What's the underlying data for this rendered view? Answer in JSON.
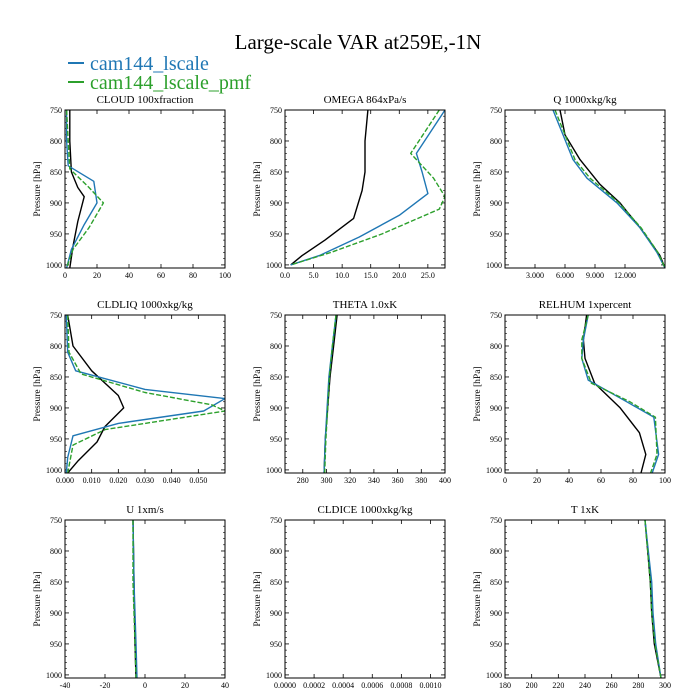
{
  "figure": {
    "title": "Large-scale VAR at259E,-1N",
    "legend": [
      {
        "label": "cam144_lscale",
        "color": "#1f77b4"
      },
      {
        "label": "cam144_lscale_pmf",
        "color": "#2ca02c"
      }
    ],
    "reference_color": "#000000"
  },
  "chart_data": [
    {
      "type": "line",
      "title": "CLOUD 100xfraction",
      "ylabel": "Pressure [hPa]",
      "xlim": [
        0,
        100
      ],
      "xticks": [
        "0",
        "20",
        "40",
        "60",
        "80",
        "100"
      ],
      "xtick_values": [
        0,
        20,
        40,
        60,
        80,
        100
      ],
      "ylim": [
        750,
        1005
      ],
      "yticks": [
        750,
        800,
        850,
        900,
        950,
        1000
      ],
      "series": [
        {
          "role": "reference",
          "points": [
            [
              3,
              750
            ],
            [
              3,
              800
            ],
            [
              4,
              850
            ],
            [
              8,
              875
            ],
            [
              12,
              890
            ],
            [
              8,
              930
            ],
            [
              5,
              970
            ],
            [
              3,
              1005
            ]
          ]
        },
        {
          "name": "cam144_lscale",
          "points": [
            [
              1,
              750
            ],
            [
              1,
              800
            ],
            [
              2,
              840
            ],
            [
              18,
              865
            ],
            [
              20,
              900
            ],
            [
              12,
              935
            ],
            [
              4,
              975
            ],
            [
              1,
              1005
            ]
          ]
        },
        {
          "name": "cam144_lscale_pmf",
          "points": [
            [
              1,
              750
            ],
            [
              2,
              800
            ],
            [
              3,
              845
            ],
            [
              15,
              875
            ],
            [
              24,
              900
            ],
            [
              15,
              940
            ],
            [
              5,
              975
            ],
            [
              1,
              1005
            ]
          ]
        }
      ]
    },
    {
      "type": "line",
      "title": "OMEGA 864xPa/s",
      "ylabel": "Pressure [hPa]",
      "xlim": [
        0,
        28
      ],
      "xticks": [
        "0.0",
        "5.0",
        "10.0",
        "15.0",
        "20.0",
        "25.0"
      ],
      "xtick_values": [
        0,
        5,
        10,
        15,
        20,
        25
      ],
      "ylim": [
        750,
        1005
      ],
      "yticks": [
        750,
        800,
        850,
        900,
        950,
        1000
      ],
      "series": [
        {
          "role": "reference",
          "points": [
            [
              14.5,
              750
            ],
            [
              14,
              800
            ],
            [
              14,
              850
            ],
            [
              13.5,
              880
            ],
            [
              12,
              925
            ],
            [
              7,
              960
            ],
            [
              3,
              985
            ],
            [
              1,
              1000
            ]
          ]
        },
        {
          "name": "cam144_lscale",
          "points": [
            [
              28,
              750
            ],
            [
              23,
              820
            ],
            [
              24,
              850
            ],
            [
              25,
              885
            ],
            [
              20,
              920
            ],
            [
              13,
              955
            ],
            [
              6,
              985
            ],
            [
              1,
              1000
            ]
          ]
        },
        {
          "name": "cam144_lscale_pmf",
          "points": [
            [
              27,
              750
            ],
            [
              22,
              820
            ],
            [
              26,
              860
            ],
            [
              28,
              890
            ],
            [
              27,
              910
            ],
            [
              17,
              950
            ],
            [
              8,
              980
            ],
            [
              1,
              1000
            ]
          ]
        }
      ]
    },
    {
      "type": "line",
      "title": "Q 1000xkg/kg",
      "ylabel": "Pressure [hPa]",
      "xlim": [
        0,
        16
      ],
      "xticks": [
        "3.000",
        "6.000",
        "9.000",
        "12.000"
      ],
      "xtick_values": [
        3,
        6,
        9,
        12
      ],
      "ylim": [
        750,
        1005
      ],
      "yticks": [
        750,
        800,
        850,
        900,
        950,
        1000
      ],
      "series": [
        {
          "role": "reference",
          "points": [
            [
              5.5,
              750
            ],
            [
              6,
              790
            ],
            [
              7.5,
              830
            ],
            [
              9.5,
              870
            ],
            [
              11.5,
              900
            ],
            [
              13.5,
              940
            ],
            [
              15.5,
              985
            ],
            [
              16,
              1005
            ]
          ]
        },
        {
          "name": "cam144_lscale",
          "points": [
            [
              4.8,
              750
            ],
            [
              5.8,
              790
            ],
            [
              6.8,
              830
            ],
            [
              8.2,
              860
            ],
            [
              11.2,
              900
            ],
            [
              13.5,
              940
            ],
            [
              15.2,
              980
            ],
            [
              16,
              1005
            ]
          ]
        },
        {
          "name": "cam144_lscale_pmf",
          "points": [
            [
              5,
              750
            ],
            [
              6,
              790
            ],
            [
              7,
              830
            ],
            [
              8.5,
              860
            ],
            [
              11.4,
              900
            ],
            [
              13.6,
              940
            ],
            [
              15.3,
              980
            ],
            [
              16,
              1005
            ]
          ]
        }
      ]
    },
    {
      "type": "line",
      "title": "CLDLIQ 1000xkg/kg",
      "ylabel": "Pressure [hPa]",
      "xlim": [
        0,
        0.06
      ],
      "xticks": [
        "0.000",
        "0.010",
        "0.020",
        "0.030",
        "0.040",
        "0.050"
      ],
      "xtick_values": [
        0,
        0.01,
        0.02,
        0.03,
        0.04,
        0.05
      ],
      "ylim": [
        750,
        1005
      ],
      "yticks": [
        750,
        800,
        850,
        900,
        950,
        1000
      ],
      "series": [
        {
          "role": "reference",
          "points": [
            [
              0.001,
              750
            ],
            [
              0.003,
              800
            ],
            [
              0.01,
              840
            ],
            [
              0.02,
              880
            ],
            [
              0.022,
              900
            ],
            [
              0.015,
              930
            ],
            [
              0.012,
              955
            ],
            [
              0.005,
              985
            ],
            [
              0.001,
              1005
            ]
          ]
        },
        {
          "name": "cam144_lscale",
          "points": [
            [
              0.0005,
              750
            ],
            [
              0.001,
              810
            ],
            [
              0.004,
              840
            ],
            [
              0.03,
              870
            ],
            [
              0.06,
              885
            ],
            [
              0.052,
              905
            ],
            [
              0.02,
              925
            ],
            [
              0.003,
              945
            ],
            [
              0.001,
              980
            ],
            [
              0.0005,
              1005
            ]
          ]
        },
        {
          "name": "cam144_lscale_pmf",
          "points": [
            [
              0.001,
              750
            ],
            [
              0.0015,
              810
            ],
            [
              0.006,
              845
            ],
            [
              0.03,
              875
            ],
            [
              0.055,
              895
            ],
            [
              0.06,
              905
            ],
            [
              0.045,
              915
            ],
            [
              0.015,
              935
            ],
            [
              0.003,
              960
            ],
            [
              0.001,
              1005
            ]
          ]
        }
      ]
    },
    {
      "type": "line",
      "title": "THETA 1.0xK",
      "ylabel": "Pressure [hPa]",
      "xlim": [
        265,
        400
      ],
      "xticks": [
        "280",
        "300",
        "320",
        "340",
        "360",
        "380",
        "400"
      ],
      "xtick_values": [
        280,
        300,
        320,
        340,
        360,
        380,
        400
      ],
      "ylim": [
        750,
        1005
      ],
      "yticks": [
        750,
        800,
        850,
        900,
        950,
        1000
      ],
      "series": [
        {
          "role": "reference",
          "points": [
            [
              309,
              750
            ],
            [
              306,
              800
            ],
            [
              303,
              850
            ],
            [
              301,
              900
            ],
            [
              299,
              950
            ],
            [
              298,
              1005
            ]
          ]
        },
        {
          "name": "cam144_lscale",
          "points": [
            [
              308,
              750
            ],
            [
              305,
              800
            ],
            [
              302,
              850
            ],
            [
              300.5,
              900
            ],
            [
              299,
              950
            ],
            [
              298,
              1005
            ]
          ]
        },
        {
          "name": "cam144_lscale_pmf",
          "points": [
            [
              308,
              750
            ],
            [
              305,
              800
            ],
            [
              302.5,
              850
            ],
            [
              301,
              900
            ],
            [
              299.5,
              950
            ],
            [
              298.5,
              1005
            ]
          ]
        }
      ]
    },
    {
      "type": "line",
      "title": "RELHUM 1xpercent",
      "ylabel": "Pressure [hPa]",
      "xlim": [
        0,
        100
      ],
      "xticks": [
        "0",
        "20",
        "40",
        "60",
        "80",
        "100"
      ],
      "xtick_values": [
        0,
        20,
        40,
        60,
        80,
        100
      ],
      "ylim": [
        750,
        1005
      ],
      "yticks": [
        750,
        800,
        850,
        900,
        950,
        1000
      ],
      "series": [
        {
          "role": "reference",
          "points": [
            [
              51,
              750
            ],
            [
              49,
              790
            ],
            [
              50,
              820
            ],
            [
              56,
              860
            ],
            [
              72,
              900
            ],
            [
              84,
              940
            ],
            [
              88,
              975
            ],
            [
              85,
              1005
            ]
          ]
        },
        {
          "name": "cam144_lscale",
          "points": [
            [
              52,
              750
            ],
            [
              49,
              790
            ],
            [
              48,
              820
            ],
            [
              52,
              855
            ],
            [
              76,
              890
            ],
            [
              93,
              915
            ],
            [
              96,
              975
            ],
            [
              92,
              1005
            ]
          ]
        },
        {
          "name": "cam144_lscale_pmf",
          "points": [
            [
              52,
              750
            ],
            [
              48,
              790
            ],
            [
              48,
              820
            ],
            [
              54,
              860
            ],
            [
              78,
              890
            ],
            [
              94,
              915
            ],
            [
              95,
              975
            ],
            [
              91,
              1005
            ]
          ]
        }
      ]
    },
    {
      "type": "line",
      "title": "U 1xm/s",
      "ylabel": "Pressure [hPa]",
      "xlim": [
        -40,
        40
      ],
      "xticks": [
        "-40",
        "-20",
        "0",
        "20",
        "40"
      ],
      "xtick_values": [
        -40,
        -20,
        0,
        20,
        40
      ],
      "ylim": [
        750,
        1005
      ],
      "yticks": [
        750,
        800,
        850,
        900,
        950,
        1000
      ],
      "series": [
        {
          "role": "reference",
          "points": [
            [
              -6,
              750
            ],
            [
              -5.5,
              850
            ],
            [
              -5,
              950
            ],
            [
              -4.5,
              1005
            ]
          ]
        },
        {
          "name": "cam144_lscale",
          "points": [
            [
              -6,
              750
            ],
            [
              -5.5,
              850
            ],
            [
              -4.5,
              950
            ],
            [
              -4,
              1005
            ]
          ]
        },
        {
          "name": "cam144_lscale_pmf",
          "points": [
            [
              -6,
              750
            ],
            [
              -6,
              850
            ],
            [
              -5,
              950
            ],
            [
              -4.5,
              1005
            ]
          ]
        }
      ]
    },
    {
      "type": "line",
      "title": "CLDICE 1000xkg/kg",
      "ylabel": "Pressure [hPa]",
      "xlim": [
        0,
        0.0011
      ],
      "xticks": [
        "0.0000",
        "0.0002",
        "0.0004",
        "0.0006",
        "0.0008",
        "0.0010"
      ],
      "xtick_values": [
        0,
        0.0002,
        0.0004,
        0.0006,
        0.0008,
        0.001
      ],
      "ylim": [
        750,
        1005
      ],
      "yticks": [
        750,
        800,
        850,
        900,
        950,
        1000
      ],
      "series": []
    },
    {
      "type": "line",
      "title": "T 1xK",
      "ylabel": "Pressure [hPa]",
      "xlim": [
        180,
        300
      ],
      "xticks": [
        "180",
        "200",
        "220",
        "240",
        "260",
        "280",
        "300"
      ],
      "xtick_values": [
        180,
        200,
        220,
        240,
        260,
        280,
        300
      ],
      "ylim": [
        750,
        1005
      ],
      "yticks": [
        750,
        800,
        850,
        900,
        950,
        1000
      ],
      "series": [
        {
          "role": "reference",
          "points": [
            [
              285,
              750
            ],
            [
              287,
              800
            ],
            [
              289,
              850
            ],
            [
              290,
              900
            ],
            [
              292,
              950
            ],
            [
              297,
              1005
            ]
          ]
        },
        {
          "name": "cam144_lscale",
          "points": [
            [
              285,
              750
            ],
            [
              287.5,
              800
            ],
            [
              290,
              850
            ],
            [
              291,
              900
            ],
            [
              293,
              950
            ],
            [
              297,
              1005
            ]
          ]
        },
        {
          "name": "cam144_lscale_pmf",
          "points": [
            [
              285,
              750
            ],
            [
              287,
              800
            ],
            [
              289,
              850
            ],
            [
              290,
              900
            ],
            [
              292.5,
              950
            ],
            [
              297,
              1005
            ]
          ]
        }
      ]
    }
  ]
}
